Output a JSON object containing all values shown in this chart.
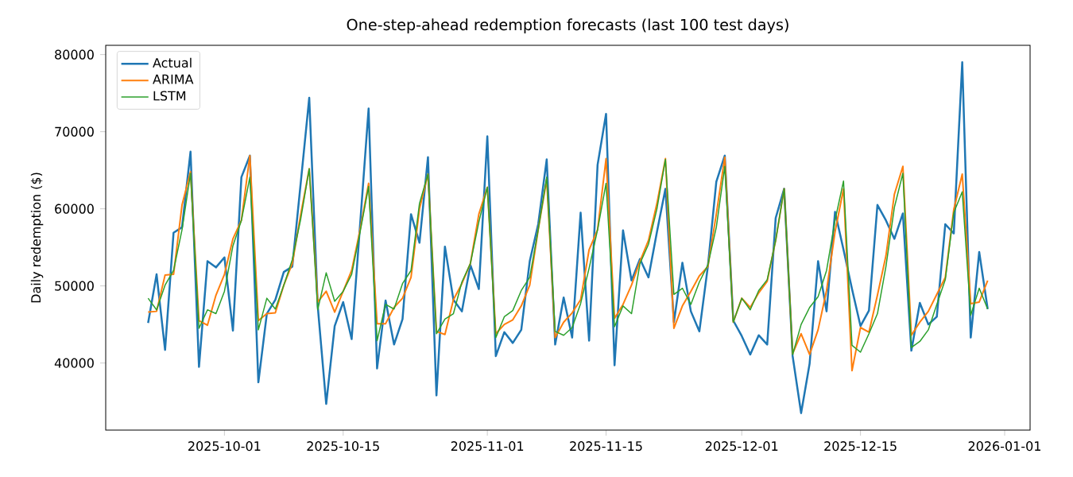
{
  "chart_data": {
    "type": "line",
    "title": "One-step-ahead redemption forecasts (last 100 test days)",
    "ylabel": "Daily redemption ($)",
    "x": [
      "2025-09-22",
      "2025-09-23",
      "2025-09-24",
      "2025-09-25",
      "2025-09-26",
      "2025-09-27",
      "2025-09-28",
      "2025-09-29",
      "2025-09-30",
      "2025-10-01",
      "2025-10-02",
      "2025-10-03",
      "2025-10-04",
      "2025-10-05",
      "2025-10-06",
      "2025-10-07",
      "2025-10-08",
      "2025-10-09",
      "2025-10-10",
      "2025-10-11",
      "2025-10-12",
      "2025-10-13",
      "2025-10-14",
      "2025-10-15",
      "2025-10-16",
      "2025-10-17",
      "2025-10-18",
      "2025-10-19",
      "2025-10-20",
      "2025-10-21",
      "2025-10-22",
      "2025-10-23",
      "2025-10-24",
      "2025-10-25",
      "2025-10-26",
      "2025-10-27",
      "2025-10-28",
      "2025-10-29",
      "2025-10-30",
      "2025-10-31",
      "2025-11-01",
      "2025-11-02",
      "2025-11-03",
      "2025-11-04",
      "2025-11-05",
      "2025-11-06",
      "2025-11-07",
      "2025-11-08",
      "2025-11-09",
      "2025-11-10",
      "2025-11-11",
      "2025-11-12",
      "2025-11-13",
      "2025-11-14",
      "2025-11-15",
      "2025-11-16",
      "2025-11-17",
      "2025-11-18",
      "2025-11-19",
      "2025-11-20",
      "2025-11-21",
      "2025-11-22",
      "2025-11-23",
      "2025-11-24",
      "2025-11-25",
      "2025-11-26",
      "2025-11-27",
      "2025-11-28",
      "2025-11-29",
      "2025-11-30",
      "2025-12-01",
      "2025-12-02",
      "2025-12-03",
      "2025-12-04",
      "2025-12-05",
      "2025-12-06",
      "2025-12-07",
      "2025-12-08",
      "2025-12-09",
      "2025-12-10",
      "2025-12-11",
      "2025-12-12",
      "2025-12-13",
      "2025-12-14",
      "2025-12-15",
      "2025-12-16",
      "2025-12-17",
      "2025-12-18",
      "2025-12-19",
      "2025-12-20",
      "2025-12-21",
      "2025-12-22",
      "2025-12-23",
      "2025-12-24",
      "2025-12-25",
      "2025-12-26",
      "2025-12-27",
      "2025-12-28",
      "2025-12-29",
      "2025-12-30"
    ],
    "series": [
      {
        "name": "Actual",
        "color": "#1f77b4",
        "values": [
          45200,
          51500,
          41700,
          56900,
          57600,
          67400,
          39500,
          53200,
          52400,
          53700,
          44200,
          64100,
          66900,
          37500,
          46400,
          48200,
          51800,
          52500,
          63400,
          74400,
          47400,
          34700,
          44800,
          47900,
          43100,
          58000,
          73000,
          39300,
          48100,
          42400,
          45700,
          59300,
          55600,
          66700,
          35800,
          55100,
          48200,
          46700,
          52700,
          49600,
          69400,
          40900,
          44000,
          42600,
          44300,
          53200,
          58000,
          66400,
          42400,
          48500,
          43300,
          59500,
          42900,
          65700,
          72300,
          39700,
          57200,
          50700,
          53500,
          51100,
          57000,
          62600,
          45300,
          53000,
          46700,
          44100,
          52500,
          63500,
          66900,
          45500,
          43500,
          41100,
          43600,
          42400,
          58800,
          62600,
          40900,
          33500,
          39900,
          53200,
          46700,
          59600,
          54700,
          49600,
          44800,
          46800,
          60500,
          58500,
          56100,
          59400,
          41600,
          47800,
          45000,
          46000,
          58000,
          56800,
          79000,
          43300,
          54400,
          47000
        ]
      },
      {
        "name": "ARIMA",
        "color": "#ff7f0e",
        "values": [
          46600,
          46700,
          51400,
          51500,
          60500,
          64800,
          45500,
          44900,
          48800,
          51500,
          56100,
          58500,
          66900,
          45500,
          46400,
          46500,
          50100,
          52900,
          59300,
          65200,
          47900,
          49300,
          46600,
          49300,
          52000,
          57300,
          63300,
          45100,
          45100,
          47200,
          48400,
          51100,
          60000,
          64500,
          44100,
          43700,
          48200,
          50300,
          52900,
          59300,
          62800,
          43800,
          45000,
          45600,
          47400,
          50100,
          57300,
          63800,
          43300,
          45300,
          46500,
          48200,
          54700,
          57300,
          66500,
          45800,
          47600,
          50100,
          53200,
          55900,
          60700,
          66500,
          44500,
          47400,
          49300,
          51300,
          52500,
          59300,
          66700,
          45300,
          48400,
          47200,
          49100,
          50600,
          55900,
          62600,
          41200,
          43800,
          41100,
          44300,
          49400,
          57000,
          62600,
          39000,
          44600,
          44000,
          48800,
          53900,
          61900,
          65500,
          43600,
          45300,
          46700,
          48900,
          51100,
          59900,
          64500,
          47700,
          47900,
          50700
        ]
      },
      {
        "name": "LSTM",
        "color": "#2ca02c",
        "values": [
          48400,
          46900,
          50100,
          52000,
          57300,
          64600,
          44500,
          46900,
          46400,
          49300,
          55200,
          58500,
          64100,
          44300,
          48400,
          47000,
          50100,
          53400,
          58700,
          65200,
          46900,
          51700,
          48000,
          49300,
          51500,
          57000,
          62900,
          42900,
          47600,
          47000,
          50300,
          52000,
          60700,
          64500,
          43800,
          45700,
          46400,
          50500,
          52900,
          58300,
          62800,
          43300,
          46000,
          46800,
          49400,
          51100,
          57300,
          64100,
          44100,
          43600,
          44600,
          47700,
          52300,
          57300,
          63300,
          44700,
          47400,
          46400,
          52900,
          55400,
          60000,
          66400,
          48900,
          49700,
          47600,
          50500,
          52700,
          57600,
          65500,
          45300,
          48400,
          46900,
          49400,
          50800,
          55900,
          62600,
          41100,
          45000,
          47200,
          48600,
          52000,
          58500,
          63600,
          42300,
          41400,
          43800,
          46400,
          52500,
          60200,
          64600,
          42000,
          42800,
          44300,
          47600,
          50800,
          59500,
          62200,
          46200,
          49700,
          47000
        ]
      }
    ],
    "xlim": [
      "2025-09-17",
      "2026-01-04"
    ],
    "xticks": [
      "2025-10-01",
      "2025-10-15",
      "2025-11-01",
      "2025-11-15",
      "2025-12-01",
      "2025-12-15",
      "2026-01-01"
    ],
    "ylim": [
      31300,
      81200
    ],
    "yticks": [
      40000,
      50000,
      60000,
      70000,
      80000
    ],
    "legend": "top left",
    "line_style": "solid"
  }
}
